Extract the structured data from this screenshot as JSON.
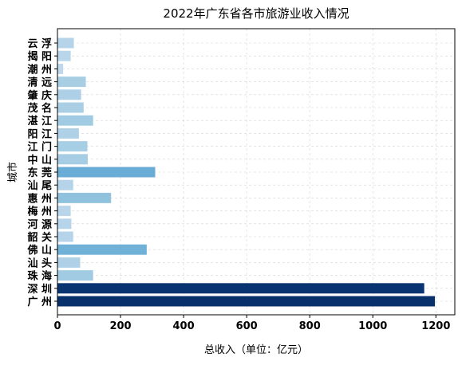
{
  "chart_data": {
    "type": "bar",
    "orientation": "horizontal",
    "title": "2022年广东省各市旅游业收入情况",
    "xlabel": "总收入（单位：亿元）",
    "ylabel": "城市",
    "xlim": [
      0,
      1260
    ],
    "xticks": [
      0,
      200,
      400,
      600,
      800,
      1000,
      1200
    ],
    "grid": true,
    "legend": "none",
    "colormap": "Blues (darker = higher revenue)",
    "categories": [
      "广 州",
      "深 圳",
      "珠 海",
      "汕 头",
      "佛 山",
      "韶 关",
      "河 源",
      "梅 州",
      "惠 州",
      "汕 尾",
      "东 莞",
      "中 山",
      "江 门",
      "阳 江",
      "湛 江",
      "茂 名",
      "肇 庆",
      "清 远",
      "潮 州",
      "揭 阳",
      "云 浮"
    ],
    "values": [
      1197,
      1163,
      113,
      72,
      283,
      50,
      44,
      42,
      170,
      50,
      310,
      96,
      95,
      68,
      113,
      83,
      75,
      90,
      18,
      42,
      52
    ]
  }
}
